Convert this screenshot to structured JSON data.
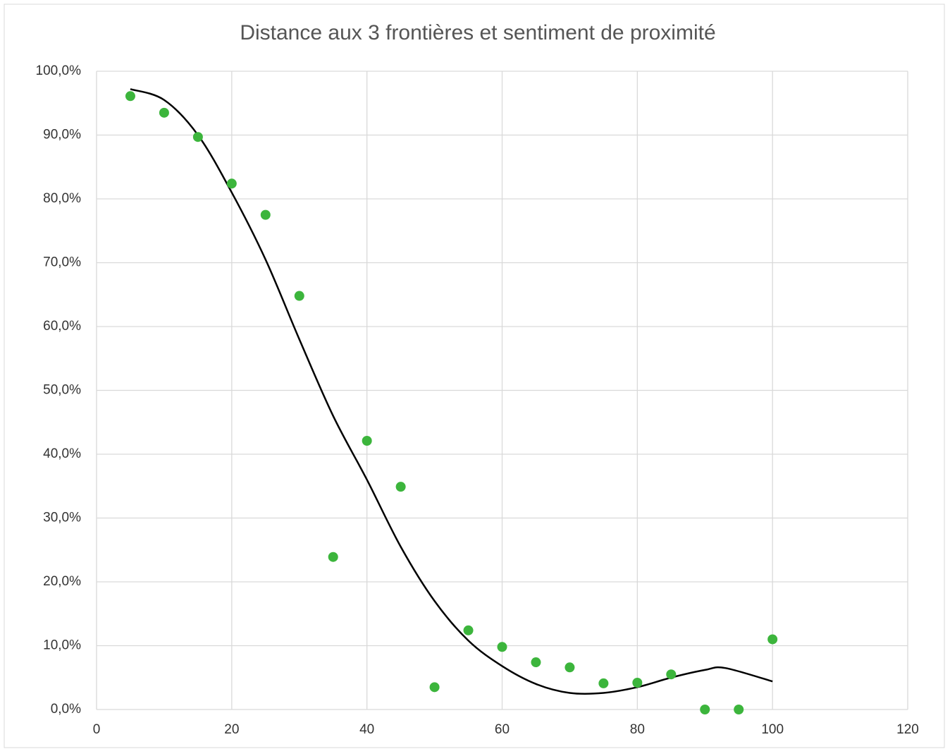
{
  "chart_data": {
    "type": "scatter",
    "title": "Distance aux 3 frontières et sentiment de proximité",
    "x": [
      5,
      10,
      15,
      20,
      25,
      30,
      35,
      40,
      45,
      50,
      55,
      60,
      65,
      70,
      75,
      80,
      85,
      90,
      95,
      100
    ],
    "values": [
      96.1,
      93.5,
      89.7,
      82.4,
      77.5,
      64.8,
      23.9,
      42.1,
      34.9,
      3.5,
      12.4,
      9.8,
      7.4,
      6.6,
      4.1,
      4.2,
      5.5,
      0,
      0,
      11.0
    ],
    "color": "#3cb53c",
    "trendline": {
      "x": [
        5,
        10,
        15,
        20,
        25,
        30,
        35,
        40,
        45,
        50,
        55,
        60,
        65,
        70,
        75,
        80,
        85,
        90,
        93,
        100
      ],
      "values": [
        97.2,
        95.5,
        90,
        81,
        70.5,
        58,
        46,
        36,
        25.5,
        17,
        10.8,
        6.8,
        4,
        2.6,
        2.6,
        3.5,
        5,
        6.2,
        6.5,
        4.4
      ],
      "color": "#000000"
    },
    "xlim": [
      0,
      120
    ],
    "xticks": [
      0,
      20,
      40,
      60,
      80,
      100,
      120
    ],
    "ylim": [
      0,
      100
    ],
    "yticks": [
      {
        "value": 0,
        "label": "0,0%"
      },
      {
        "value": 10,
        "label": "10,0%"
      },
      {
        "value": 20,
        "label": "20,0%"
      },
      {
        "value": 30,
        "label": "30,0%"
      },
      {
        "value": 40,
        "label": "40,0%"
      },
      {
        "value": 50,
        "label": "50,0%"
      },
      {
        "value": 60,
        "label": "60,0%"
      },
      {
        "value": 70,
        "label": "70,0%"
      },
      {
        "value": 80,
        "label": "80,0%"
      },
      {
        "value": 90,
        "label": "90,0%"
      },
      {
        "value": 100,
        "label": "100,0%"
      }
    ],
    "grid": true
  }
}
